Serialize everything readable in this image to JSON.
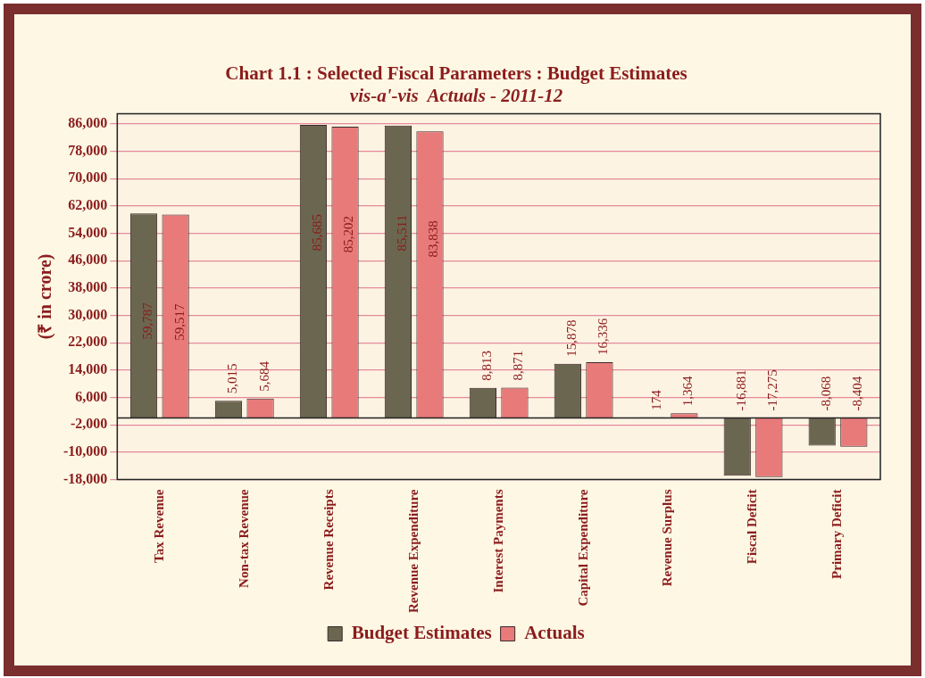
{
  "chart_data": {
    "type": "bar",
    "title": "Chart 1.1 : Selected Fiscal Parameters : Budget Estimates",
    "subtitle": "vis-a'-vis  Actuals - 2011-12",
    "ylabel": "(₹ in crore)",
    "categories": [
      "Tax Revenue",
      "Non-tax Revenue",
      "Revenue Receipts",
      "Revenue Expenditure",
      "Interest Payments",
      "Capital Expenditure",
      "Revenue Surplus",
      "Fiscal Deficit",
      "Primary Deficit"
    ],
    "series": [
      {
        "name": "Budget Estimates",
        "color": "#6b6650",
        "values": [
          59787,
          5015,
          85685,
          85511,
          8813,
          15878,
          174,
          -16881,
          -8068
        ],
        "value_labels": [
          "59,787",
          "5,015",
          "85,685",
          "85,511",
          "8,813",
          "15,878",
          "174",
          "-16,881",
          "-8,068"
        ]
      },
      {
        "name": "Actuals",
        "color": "#e87a7a",
        "values": [
          59517,
          5684,
          85202,
          83838,
          8871,
          16336,
          1364,
          -17275,
          -8404
        ],
        "value_labels": [
          "59,517",
          "5,684",
          "85,202",
          "83,838",
          "8,871",
          "16,336",
          "1,364",
          "-17,275",
          "-8,404"
        ]
      }
    ],
    "ylim": [
      -18000,
      89000
    ],
    "yticks": [
      {
        "value": -18000,
        "label": "-18,000"
      },
      {
        "value": -10000,
        "label": "-10,000"
      },
      {
        "value": -2000,
        "label": "-2,000"
      },
      {
        "value": 6000,
        "label": "6,000"
      },
      {
        "value": 14000,
        "label": "14,000"
      },
      {
        "value": 22000,
        "label": "22,000"
      },
      {
        "value": 30000,
        "label": "30,000"
      },
      {
        "value": 38000,
        "label": "38,000"
      },
      {
        "value": 46000,
        "label": "46,000"
      },
      {
        "value": 54000,
        "label": "54,000"
      },
      {
        "value": 62000,
        "label": "62,000"
      },
      {
        "value": 70000,
        "label": "70,000"
      },
      {
        "value": 78000,
        "label": "78,000"
      },
      {
        "value": 86000,
        "label": "86,000"
      }
    ],
    "grid": "y",
    "legend": "bottom"
  }
}
